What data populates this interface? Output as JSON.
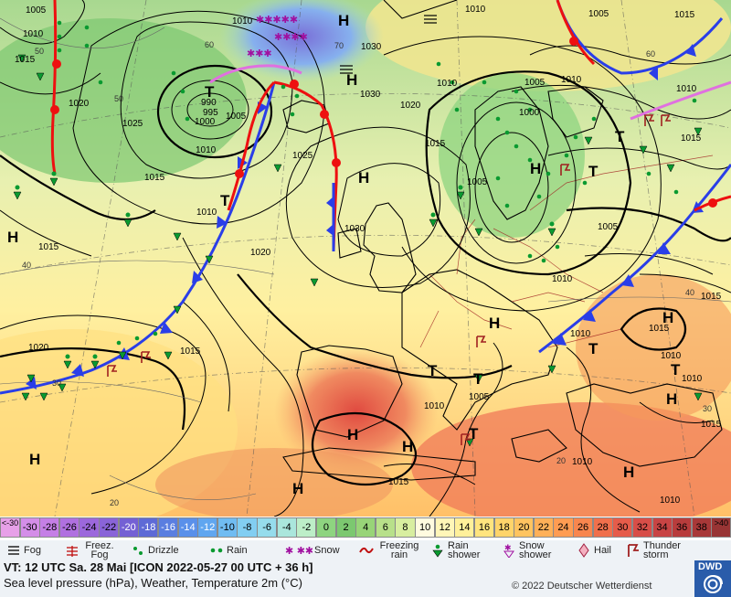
{
  "map": {
    "pressure_labels": [
      "1005",
      "1010",
      "1015",
      "1020",
      "1025",
      "1030",
      "1005",
      "1000",
      "995",
      "990",
      "1010",
      "1015",
      "1020",
      "1025",
      "1030",
      "1010",
      "1005",
      "1000",
      "1005",
      "1010",
      "1015",
      "1020",
      "1010",
      "1005",
      "1010",
      "1010",
      "1015",
      "1010",
      "1020",
      "1015",
      "1010",
      "1010",
      "1015",
      "1010",
      "1015",
      "1015",
      "1015",
      "1005",
      "1010",
      "1015",
      "1010",
      "1005",
      "1010",
      "1010",
      "1015",
      "1030"
    ],
    "temp_labels": [
      "50",
      "40",
      "50",
      "60",
      "70",
      "30",
      "30",
      "20",
      "20",
      "40",
      "60"
    ],
    "centers": [
      "H",
      "H",
      "H",
      "H",
      "H",
      "H",
      "H",
      "H",
      "H",
      "H",
      "H",
      "H",
      "H",
      "T",
      "T",
      "T",
      "T",
      "T",
      "T",
      "T",
      "T",
      "T"
    ]
  },
  "scale": {
    "labels": [
      "<-30",
      "-30",
      "-28",
      "-26",
      "-24",
      "-22",
      "-20",
      "-18",
      "-16",
      "-14",
      "-12",
      "-10",
      "-8",
      "-6",
      "-4",
      "-2",
      "0",
      "2",
      "4",
      "6",
      "8",
      "10",
      "12",
      "14",
      "16",
      "18",
      "20",
      "22",
      "24",
      "26",
      "28",
      "30",
      "32",
      "34",
      "36",
      "38",
      ">40"
    ],
    "colors": [
      "#e7a0e8",
      "#d48ee8",
      "#c57fe6",
      "#b070e0",
      "#9c68dc",
      "#8a64d8",
      "#7460d4",
      "#5e6ad6",
      "#5a7ee0",
      "#5a90ea",
      "#60a6f0",
      "#70bcf2",
      "#82cef2",
      "#96dcec",
      "#aae6dc",
      "#bdeec8",
      "#8ed480",
      "#7cc870",
      "#98d478",
      "#b8e08a",
      "#d8eea0",
      "#fffbe0",
      "#fff6b8",
      "#fff09a",
      "#ffe47e",
      "#ffd46a",
      "#ffc460",
      "#ffb058",
      "#ff9c52",
      "#f8864e",
      "#f0704c",
      "#e65c4a",
      "#d84e48",
      "#c84444",
      "#b83c3c",
      "#a83838",
      "#983434"
    ]
  },
  "legend": {
    "items": [
      {
        "icon": "fog-icon",
        "label": "Fog"
      },
      {
        "icon": "freezing-fog-icon",
        "label": "Freez. Fog"
      },
      {
        "icon": "drizzle-icon",
        "label": "Drizzle"
      },
      {
        "icon": "rain-icon",
        "label": "Rain"
      },
      {
        "icon": "snow-icon",
        "label": "Snow"
      },
      {
        "icon": "freezing-rain-icon",
        "label": "Freezing rain"
      },
      {
        "icon": "rain-shower-icon",
        "label": "Rain shower"
      },
      {
        "icon": "snow-shower-icon",
        "label": "Snow shower"
      },
      {
        "icon": "hail-icon",
        "label": "Hail"
      },
      {
        "icon": "thunderstorm-icon",
        "label": "Thunder storm"
      }
    ]
  },
  "footer": {
    "valid_time": "VT: 12 UTC Sa.  28 Mai [ICON 2022-05-27  00 UTC + 36 h]",
    "description": "Sea level pressure (hPa), Weather, Temperature 2m (°C)",
    "credit": "© 2022 Deutscher Wetterdienst",
    "logo": "DWD"
  },
  "colors": {
    "cold_front": "#2a3ee8",
    "warm_front": "#ee1010",
    "occlusion": "#e070e0"
  }
}
